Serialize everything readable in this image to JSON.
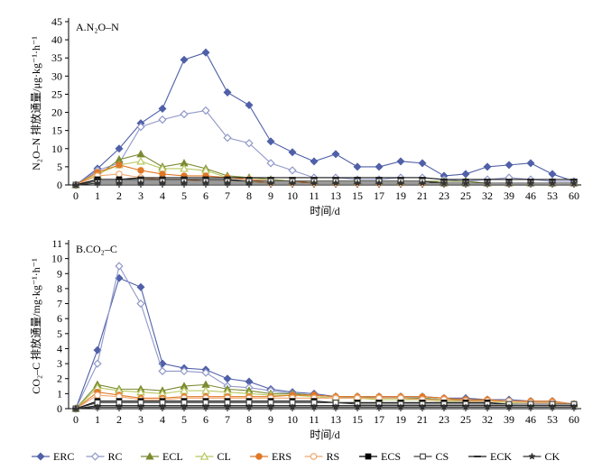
{
  "colors": {
    "ERC": "#5060a8",
    "RC": "#9098c8",
    "ECL": "#7a8a30",
    "CL": "#b8c860",
    "ERS": "#e07828",
    "RS": "#f0a870",
    "ECS": "#000000",
    "CS": "#404040",
    "ECK": "#1a1a1a",
    "CK": "#333333",
    "axis": "#000000"
  },
  "chart_data": [
    {
      "type": "line",
      "title": "A.N₂O–N",
      "xlabel": "时间/d",
      "ylabel": "N₂O–N 排放通量/μg·kg⁻¹·h⁻¹",
      "ylim": [
        0,
        45
      ],
      "yticks": [
        "0",
        "5",
        "10",
        "15",
        "20",
        "25",
        "30",
        "35",
        "40",
        "45"
      ],
      "categories": [
        "0",
        "1",
        "2",
        "3",
        "4",
        "5",
        "6",
        "7",
        "8",
        "9",
        "10",
        "11",
        "13",
        "15",
        "17",
        "19",
        "21",
        "23",
        "25",
        "32",
        "39",
        "46",
        "53",
        "60"
      ],
      "series": [
        {
          "name": "ERC",
          "marker": "diamond-filled",
          "values": [
            0,
            4.5,
            10,
            17,
            21,
            34.5,
            36.5,
            25.5,
            22,
            12,
            9,
            6.5,
            8.5,
            5,
            5,
            6.5,
            6,
            2.5,
            3,
            5,
            5.5,
            6,
            3,
            1
          ]
        },
        {
          "name": "RC",
          "marker": "diamond-open",
          "values": [
            0,
            4,
            6,
            16,
            18,
            19.5,
            20.5,
            13,
            11.5,
            6,
            4,
            2,
            2,
            1.5,
            1.5,
            2,
            2,
            1.5,
            1,
            1.5,
            2,
            1.5,
            1,
            1
          ]
        },
        {
          "name": "ECL",
          "marker": "triangle-filled",
          "values": [
            0,
            2.5,
            7,
            8.5,
            5,
            6,
            4.5,
            2.5,
            2,
            1.5,
            1,
            1,
            1,
            1,
            1,
            1,
            1,
            1,
            1,
            0.5,
            0.5,
            0.5,
            0.5,
            0.5
          ]
        },
        {
          "name": "CL",
          "marker": "triangle-open",
          "values": [
            0,
            3,
            5.5,
            6.5,
            4.5,
            4.5,
            4,
            2,
            1.5,
            1,
            1,
            1,
            1,
            1,
            1,
            1,
            1,
            0.5,
            0.5,
            0.5,
            0.5,
            0.5,
            0.5,
            0.5
          ]
        },
        {
          "name": "ERS",
          "marker": "circle-filled",
          "values": [
            0,
            3.5,
            5.5,
            4,
            3,
            2.5,
            2.5,
            2,
            1.5,
            1,
            1,
            0.5,
            0.5,
            0.5,
            0.5,
            0.5,
            0.5,
            0.5,
            0.5,
            0.5,
            0.5,
            0.5,
            0.5,
            0.5
          ]
        },
        {
          "name": "RS",
          "marker": "circle-open",
          "values": [
            0,
            2.5,
            3,
            2,
            1.5,
            1.5,
            1,
            1,
            1,
            0.5,
            0.5,
            0.5,
            0.5,
            0.5,
            0.5,
            0.5,
            0.5,
            0.5,
            0.5,
            0.5,
            0.5,
            0.5,
            0.5,
            0.5
          ]
        },
        {
          "name": "ECS",
          "marker": "square-filled",
          "values": [
            0,
            1.5,
            1.5,
            1.5,
            1.5,
            1.5,
            1.5,
            1.5,
            1,
            1,
            1,
            1,
            1,
            1,
            1,
            1,
            1,
            0.5,
            0.5,
            0.5,
            0.5,
            0.5,
            0.5,
            0.5
          ]
        },
        {
          "name": "CS",
          "marker": "square-open",
          "values": [
            0,
            1,
            1,
            1,
            1,
            1,
            1,
            1,
            1,
            1,
            1,
            1,
            1,
            1,
            1,
            1,
            1,
            0.5,
            0.5,
            0.5,
            0.5,
            0.5,
            0.5,
            0.5
          ]
        },
        {
          "name": "ECK",
          "marker": "dash",
          "values": [
            0,
            1.5,
            1.5,
            2,
            2,
            2,
            2,
            2,
            2,
            2,
            2,
            2,
            2,
            2,
            2,
            2,
            2,
            1.5,
            1.5,
            1.5,
            1.5,
            1.5,
            1.5,
            1.5
          ]
        },
        {
          "name": "CK",
          "marker": "star",
          "values": [
            0,
            0.5,
            0.5,
            0.5,
            0.5,
            0.5,
            0.5,
            0.5,
            0.5,
            0.5,
            0.5,
            0.5,
            0.5,
            0.5,
            0.5,
            0.5,
            0.5,
            0.5,
            0.5,
            0.5,
            0.5,
            0.5,
            0.5,
            0.5
          ]
        }
      ]
    },
    {
      "type": "line",
      "title": "B.CO₂–C",
      "xlabel": "时间/d",
      "ylabel": "CO₂–C 排放通量/mg·kg⁻¹·h⁻¹",
      "ylim": [
        0,
        11
      ],
      "yticks": [
        "0",
        "1",
        "2",
        "3",
        "4",
        "5",
        "6",
        "7",
        "8",
        "9",
        "10",
        "11"
      ],
      "categories": [
        "0",
        "1",
        "2",
        "3",
        "4",
        "5",
        "6",
        "7",
        "8",
        "9",
        "10",
        "11",
        "13",
        "15",
        "17",
        "19",
        "21",
        "23",
        "25",
        "32",
        "39",
        "46",
        "53",
        "60"
      ],
      "series": [
        {
          "name": "ERC",
          "marker": "diamond-filled",
          "values": [
            0,
            3.9,
            8.7,
            8.1,
            3,
            2.7,
            2.6,
            2,
            1.8,
            1.3,
            1.1,
            1,
            0.8,
            0.8,
            0.8,
            0.8,
            0.8,
            0.7,
            0.7,
            0.6,
            0.6,
            0.5,
            0.5,
            0.3
          ]
        },
        {
          "name": "RC",
          "marker": "diamond-open",
          "values": [
            0,
            3,
            9.5,
            7,
            2.5,
            2.5,
            2.4,
            1.5,
            1.4,
            1.2,
            1,
            0.9,
            0.8,
            0.7,
            0.7,
            0.7,
            0.7,
            0.6,
            0.6,
            0.5,
            0.5,
            0.4,
            0.4,
            0.3
          ]
        },
        {
          "name": "ECL",
          "marker": "triangle-filled",
          "values": [
            0,
            1.6,
            1.3,
            1.3,
            1.2,
            1.5,
            1.6,
            1.3,
            1.2,
            1,
            1,
            0.9,
            0.8,
            0.8,
            0.7,
            0.7,
            0.7,
            0.6,
            0.6,
            0.5,
            0.5,
            0.4,
            0.4,
            0.3
          ]
        },
        {
          "name": "CL",
          "marker": "triangle-open",
          "values": [
            0,
            1.4,
            1.2,
            1.1,
            1,
            1.2,
            1.2,
            1.1,
            1,
            0.9,
            0.9,
            0.8,
            0.7,
            0.7,
            0.6,
            0.6,
            0.6,
            0.5,
            0.5,
            0.5,
            0.4,
            0.4,
            0.4,
            0.3
          ]
        },
        {
          "name": "ERS",
          "marker": "circle-filled",
          "values": [
            0,
            1.1,
            0.9,
            0.7,
            0.7,
            0.8,
            0.8,
            0.8,
            0.8,
            0.8,
            0.9,
            0.9,
            0.8,
            0.8,
            0.8,
            0.8,
            0.8,
            0.7,
            0.6,
            0.6,
            0.5,
            0.5,
            0.5,
            0.3
          ]
        },
        {
          "name": "RS",
          "marker": "circle-open",
          "values": [
            0,
            0.9,
            0.8,
            0.6,
            0.6,
            0.7,
            0.7,
            0.7,
            0.7,
            0.7,
            0.7,
            0.7,
            0.7,
            0.7,
            0.7,
            0.7,
            0.6,
            0.6,
            0.5,
            0.5,
            0.5,
            0.4,
            0.4,
            0.3
          ]
        },
        {
          "name": "ECS",
          "marker": "square-filled",
          "values": [
            0,
            0.5,
            0.5,
            0.5,
            0.5,
            0.5,
            0.5,
            0.5,
            0.5,
            0.5,
            0.5,
            0.5,
            0.4,
            0.4,
            0.4,
            0.4,
            0.4,
            0.4,
            0.4,
            0.4,
            0.3,
            0.3,
            0.3,
            0.3
          ]
        },
        {
          "name": "CS",
          "marker": "square-open",
          "values": [
            0,
            0.4,
            0.4,
            0.4,
            0.4,
            0.4,
            0.4,
            0.4,
            0.4,
            0.4,
            0.4,
            0.4,
            0.4,
            0.3,
            0.3,
            0.3,
            0.3,
            0.3,
            0.3,
            0.3,
            0.3,
            0.3,
            0.3,
            0.3
          ]
        },
        {
          "name": "ECK",
          "marker": "dash",
          "values": [
            0,
            0.2,
            0.2,
            0.2,
            0.2,
            0.2,
            0.2,
            0.2,
            0.2,
            0.2,
            0.2,
            0.2,
            0.2,
            0.2,
            0.2,
            0.2,
            0.2,
            0.2,
            0.2,
            0.2,
            0.2,
            0.2,
            0.2,
            0.2
          ]
        },
        {
          "name": "CK",
          "marker": "star",
          "values": [
            0,
            0.1,
            0.1,
            0.1,
            0.1,
            0.1,
            0.1,
            0.1,
            0.1,
            0.1,
            0.1,
            0.1,
            0.1,
            0.1,
            0.1,
            0.1,
            0.1,
            0.1,
            0.1,
            0.1,
            0.1,
            0.1,
            0.1,
            0.1
          ]
        }
      ]
    }
  ],
  "legend": [
    {
      "name": "ERC",
      "marker": "diamond-filled"
    },
    {
      "name": "RC",
      "marker": "diamond-open"
    },
    {
      "name": "ECL",
      "marker": "triangle-filled"
    },
    {
      "name": "CL",
      "marker": "triangle-open"
    },
    {
      "name": "ERS",
      "marker": "circle-filled"
    },
    {
      "name": "RS",
      "marker": "circle-open"
    },
    {
      "name": "ECS",
      "marker": "square-filled"
    },
    {
      "name": "CS",
      "marker": "square-open"
    },
    {
      "name": "ECK",
      "marker": "dash"
    },
    {
      "name": "CK",
      "marker": "star"
    }
  ]
}
